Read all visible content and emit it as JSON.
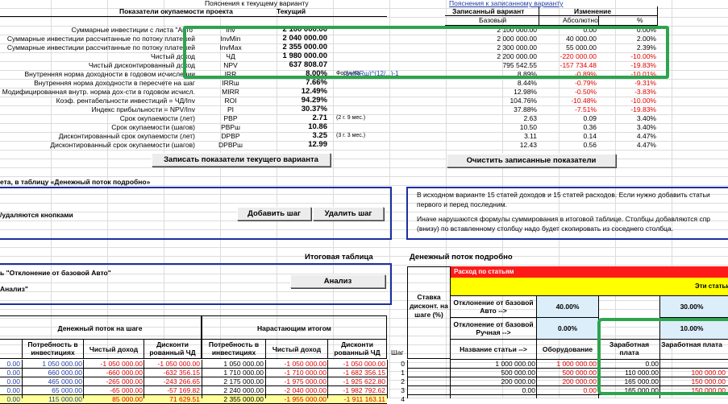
{
  "top_left": {
    "title_label": "Пояснения к текущему варианту",
    "section_header": "Показатели окупаемости проекта",
    "col_current": "Текущий",
    "rows": [
      {
        "label": "Суммарные инвестиции с листа \"Авто\"",
        "code": "Inv",
        "value": "2 100 000.00",
        "note": ""
      },
      {
        "label": "Суммарные инвестиции рассчитанные по потоку платежей",
        "code": "InvMin",
        "value": "2 040 000.00",
        "note": ""
      },
      {
        "label": "Суммарные инвестиции рассчитанные по потоку платежей",
        "code": "InvMax",
        "value": "2 355 000.00",
        "note": ""
      },
      {
        "label": "Чистый доход",
        "code": "ЧД",
        "value": "1 980 000.00",
        "note": ""
      },
      {
        "label": "Чистый дисконтированный доход",
        "code": "NPV",
        "value": "637 808.07",
        "note": ""
      },
      {
        "label": "Внутренняя норма доходности в годовом исчислении",
        "code": "IRR",
        "value": "8.00%",
        "note": "Формула"
      },
      {
        "label": "Внутренняя норма доходности в пересчете на шаг",
        "code": "IRRш",
        "value": "7.66%",
        "note": ""
      },
      {
        "label": "Модифицированная внутр. норма дох-сти в годовом исчисл.",
        "code": "MIRR",
        "value": "12.49%",
        "note": ""
      },
      {
        "label": "Коэф. рентабельности инвестиций = ЧД/Inv",
        "code": "ROI",
        "value": "94.29%",
        "note": ""
      },
      {
        "label": "Индекс прибыльности = NPV/Inv",
        "code": "PI",
        "value": "30.37%",
        "note": ""
      },
      {
        "label": "Срок окупаемости (лет)",
        "code": "PBP",
        "value": "2.71",
        "note": "(2 г. 9 мес.)"
      },
      {
        "label": "Срок окупаемости (шагов)",
        "code": "PBPш",
        "value": "10.86",
        "note": ""
      },
      {
        "label": "Дисконтированный срок окупаемости (лет)",
        "code": "DPBP",
        "value": "3.25",
        "note": "(3 г. 3 мес.)"
      },
      {
        "label": "Дисконтированный срок окупаемости (шагов)",
        "code": "DPBPш",
        "value": "12.99",
        "note": ""
      }
    ],
    "irr_formula": "(1+IRRш)^(12/...)-1",
    "button_save": "Записать показатели текущего варианта"
  },
  "top_right": {
    "title_label": "Пояснения к записанному варианту",
    "header_saved": "Записанный вариант",
    "header_change": "Изменение",
    "sub_base": "Базовый",
    "sub_abs": "Абсолютно",
    "sub_pct": "%",
    "rows": [
      {
        "base": "2 100 000.00",
        "abs": "0.00",
        "pct": "0.00%",
        "neg": false
      },
      {
        "base": "2 000 000.00",
        "abs": "40 000.00",
        "pct": "2.00%",
        "neg": false
      },
      {
        "base": "2 300 000.00",
        "abs": "55 000.00",
        "pct": "2.39%",
        "neg": false
      },
      {
        "base": "2 200 000.00",
        "abs": "-220 000.00",
        "pct": "-10.00%",
        "neg": true
      },
      {
        "base": "795 542.55",
        "abs": "-157 734.48",
        "pct": "-19.83%",
        "neg": true
      },
      {
        "base": "8.89%",
        "abs": "-0.89%",
        "pct": "-10.01%",
        "neg": true
      },
      {
        "base": "8.44%",
        "abs": "-0.79%",
        "pct": "-9.31%",
        "neg": true
      },
      {
        "base": "12.98%",
        "abs": "-0.50%",
        "pct": "-3.83%",
        "neg": true
      },
      {
        "base": "104.76%",
        "abs": "-10.48%",
        "pct": "-10.00%",
        "neg": true
      },
      {
        "base": "37.88%",
        "abs": "-7.51%",
        "pct": "-19.83%",
        "neg": true
      },
      {
        "base": "2.63",
        "abs": "0.09",
        "pct": "3.40%",
        "neg": false
      },
      {
        "base": "10.50",
        "abs": "0.36",
        "pct": "3.40%",
        "neg": false
      },
      {
        "base": "3.11",
        "abs": "0.14",
        "pct": "4.47%",
        "neg": false
      },
      {
        "base": "12.43",
        "abs": "0.56",
        "pct": "4.47%",
        "neg": false
      }
    ],
    "button_clear": "Очистить записанные показатели"
  },
  "mid_left": {
    "line1": "ета, в таблицу «Денежный поток подробно»",
    "line2": "/удаляются кнопками",
    "button_add": "Добавить шаг",
    "button_remove": "Удалить шаг"
  },
  "mid_right": {
    "note1": "В исходном варианте 15 статей доходов и 15 статей расходов. Если нужно добавить статьи",
    "note2": "первого и перед последним.",
    "note3": "Иначе нарушаются формулы суммирования в итоговой таблице. Столбцы добавляются спр",
    "note4": "(внизу) по вставленному столбцу надо будет скопировать из соседнего столбца."
  },
  "summary": {
    "title": "Итоговая таблица",
    "line1": "ь \"Отклонение от базовой Авто\"",
    "line2": "Анализ\"",
    "button_analysis": "Анализ",
    "header_step_flow": "Денежный поток на шаге",
    "header_cumulative": "Нарастающим итогом",
    "col_need": "Потребность в инвестициях",
    "col_net": "Чистый доход",
    "col_disc": "Дисконти рованный ЧД",
    "col_need2": "Потребность в инвестициях",
    "col_net2": "Чистый доход",
    "col_disc2": "Дисконти рованный ЧД",
    "col_step": "Шаг",
    "rows": [
      {
        "step": "0",
        "a": "0.00",
        "need": "1 050 000.00",
        "net": "-1 050 000.00",
        "disc": "-1 050 000.00",
        "need2": "1 050 000.00",
        "net2": "-1 050 000.00",
        "disc2": "-1 050 000.00"
      },
      {
        "step": "1",
        "a": "0.00",
        "need": "660 000.00",
        "net": "-660 000.00",
        "disc": "-632 356.15",
        "need2": "1 710 000.00",
        "net2": "-1 710 000.00",
        "disc2": "-1 682 356.15"
      },
      {
        "step": "2",
        "a": "0.00",
        "need": "465 000.00",
        "net": "-265 000.00",
        "disc": "-243 266.65",
        "need2": "2 175 000.00",
        "net2": "-1 975 000.00",
        "disc2": "-1 925 622.80"
      },
      {
        "step": "3",
        "a": "0.00",
        "need": "65 000.00",
        "net": "-65 000.00",
        "disc": "-57 169.82",
        "need2": "2 240 000.00",
        "net2": "-2 040 000.00",
        "disc2": "-1 982 792.62"
      },
      {
        "step": "4",
        "a": "0.00",
        "need": "115 000.00",
        "net": "85 000.00",
        "disc": "71 629.51",
        "need2": "2 355 000.00",
        "net2": "-1 955 000.00",
        "disc2": "-1 911 163.11"
      }
    ]
  },
  "detail": {
    "title": "Денежный поток подробно",
    "red_header": "Расход по статьям",
    "yellow_header": "Эти статьи",
    "rate_label": "Ставка дисконт. на шаге (%)",
    "dev_auto_label": "Отклонение от базовой Авто -->",
    "dev_manual_label": "Отклонение от базовой Ручная -->",
    "name_label": "Название статьи -->",
    "col_equipment": "Оборудование",
    "col_salary": "Заработная плата",
    "col_salary2": "Заработная плата",
    "dev_auto_vals": [
      "40.00%",
      "30.00%"
    ],
    "dev_manual_vals": [
      "0.00%",
      "10.00%"
    ],
    "rows": [
      {
        "a": "1 000 000.00",
        "b": "1 000 000.00",
        "c": "0.00",
        "d": ""
      },
      {
        "a": "500 000.00",
        "b": "500 000.00",
        "c": "110 000.00",
        "d": "100 000.00"
      },
      {
        "a": "200 000.00",
        "b": "200 000.00",
        "c": "165 000.00",
        "d": "150 000.00"
      },
      {
        "a": "0.00",
        "b": "0.00",
        "c": "165 000.00",
        "d": "150 000.00"
      }
    ]
  }
}
